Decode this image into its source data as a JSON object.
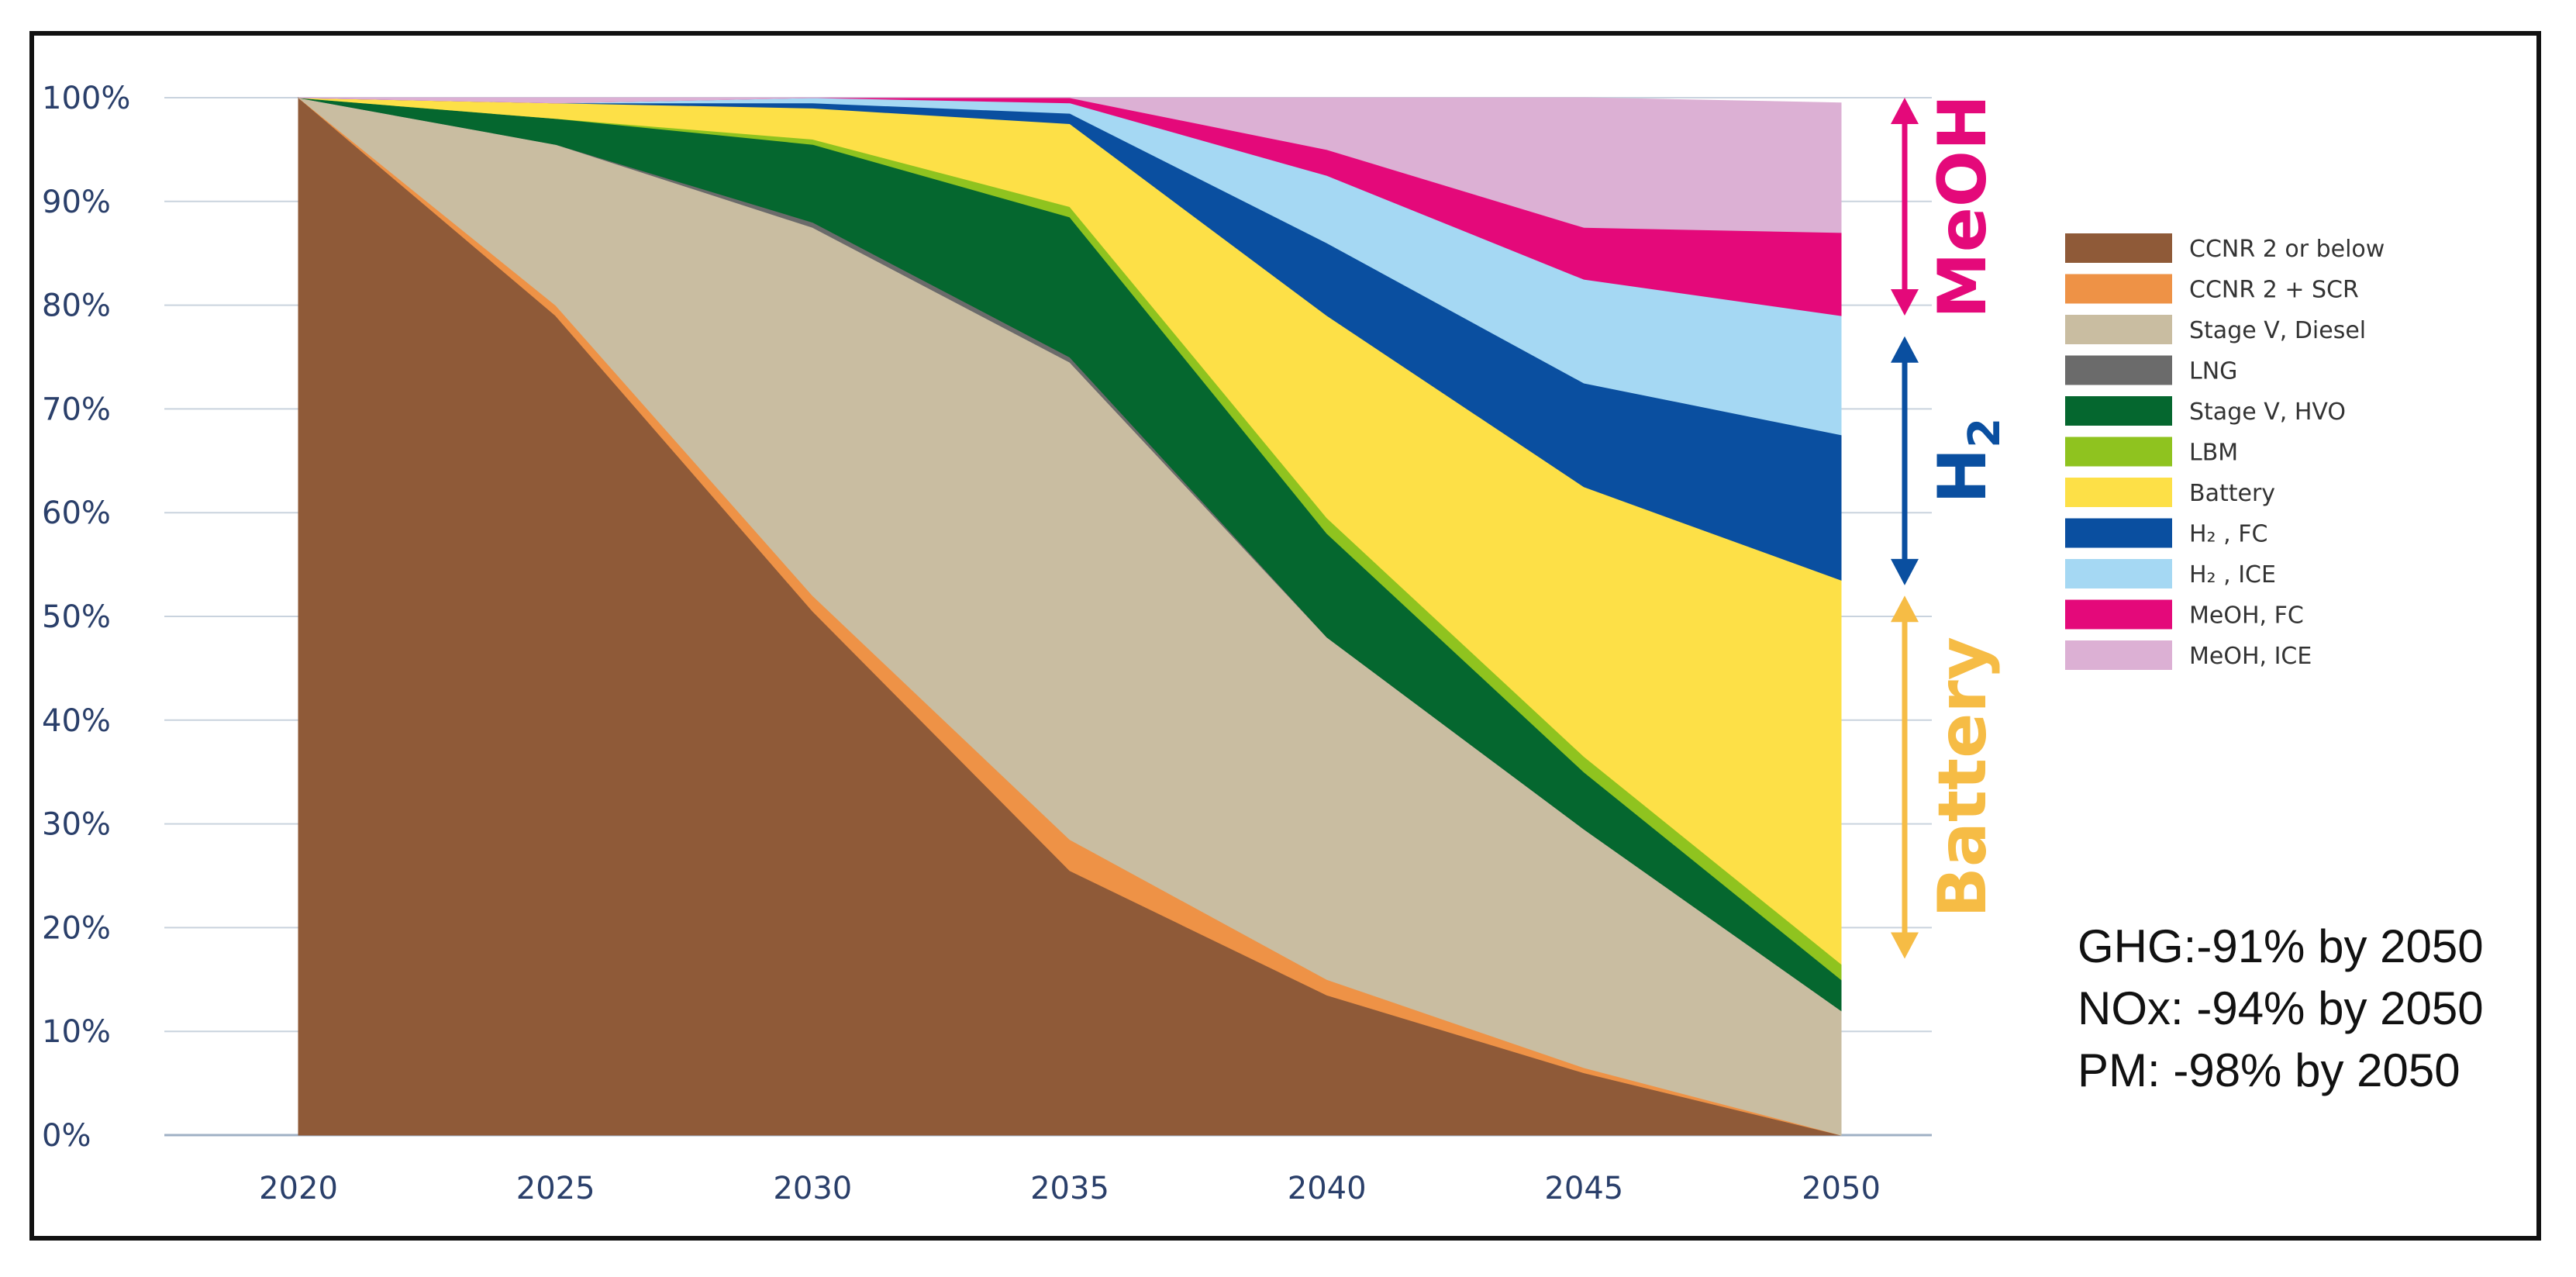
{
  "chart_data": {
    "type": "area",
    "stacked": true,
    "x": [
      2020,
      2025,
      2030,
      2035,
      2040,
      2045,
      2050
    ],
    "x_tick_labels": [
      "2020",
      "2025",
      "2030",
      "2035",
      "2040",
      "2045",
      "2050"
    ],
    "y_tick_labels": [
      "0%",
      "10%",
      "20%",
      "30%",
      "40%",
      "50%",
      "60%",
      "70%",
      "80%",
      "90%",
      "100%"
    ],
    "ylim": [
      0,
      100
    ],
    "grid": "horizontal",
    "legend_position": "right",
    "series": [
      {
        "name": "CCNR 2 or below",
        "color": "#8f5a38",
        "values": [
          100,
          79,
          50.5,
          25.5,
          13.5,
          6,
          0
        ]
      },
      {
        "name": "CCNR 2 + SCR",
        "color": "#ee9246",
        "values": [
          0,
          1,
          1.5,
          3,
          1.5,
          0.5,
          0
        ]
      },
      {
        "name": "Stage V, Diesel",
        "color": "#c9bda1",
        "values": [
          0,
          15.5,
          35.5,
          46,
          33,
          23,
          12
        ]
      },
      {
        "name": "LNG",
        "color": "#6b6b6b",
        "values": [
          0,
          0,
          0.5,
          0.5,
          0,
          0,
          0
        ]
      },
      {
        "name": "Stage V, HVO",
        "color": "#05672f",
        "values": [
          0,
          2.5,
          7.5,
          13.5,
          10,
          5.5,
          3
        ]
      },
      {
        "name": "LBM",
        "color": "#8fc31f",
        "values": [
          0,
          0,
          0.5,
          1,
          1.5,
          1.5,
          1.5
        ]
      },
      {
        "name": "Battery",
        "color": "#fde047",
        "values": [
          0,
          1.5,
          3,
          8,
          19.5,
          26,
          37
        ]
      },
      {
        "name": "H₂ , FC",
        "color": "#0a4fa0",
        "values": [
          0,
          0,
          0.5,
          1,
          7,
          10,
          14
        ]
      },
      {
        "name": "H₂ , ICE",
        "color": "#a5d8f3",
        "values": [
          0,
          0,
          0.5,
          1,
          6.5,
          10,
          11.5
        ]
      },
      {
        "name": "MeOH, FC",
        "color": "#e4097a",
        "values": [
          0,
          0,
          0,
          0.5,
          2.5,
          5,
          8
        ]
      },
      {
        "name": "MeOH, ICE",
        "color": "#dcb0d4",
        "values": [
          0,
          0.5,
          0,
          0,
          5,
          12.5,
          12.5
        ]
      }
    ],
    "band_labels": [
      {
        "text": "MeOH",
        "color": "#e4097a",
        "from": 79,
        "to": 100
      },
      {
        "text": "H",
        "subscript": "2",
        "color": "#0a4fa0",
        "from": 53,
        "to": 77
      },
      {
        "text": "Battery",
        "color": "#f6bc45",
        "from": 17,
        "to": 52
      }
    ],
    "annotations": [
      "GHG:-91% by 2050",
      "NOx: -94% by 2050",
      "PM: -98% by 2050"
    ]
  }
}
